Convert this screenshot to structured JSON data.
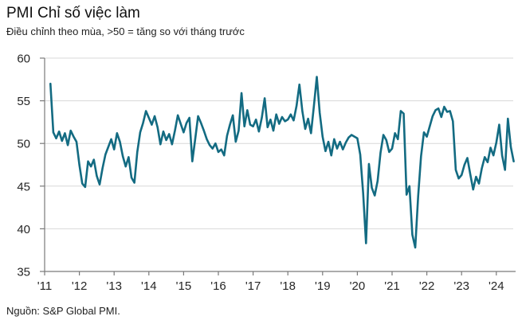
{
  "header": {
    "title": "PMI Chỉ số việc làm",
    "subtitle": "Điều chỉnh theo mùa, >50 = tăng so với tháng trước"
  },
  "footer": {
    "source": "Nguồn: S&P Global PMI."
  },
  "chart_data": {
    "type": "line",
    "title": "PMI Chỉ số việc làm",
    "subtitle": "Điều chỉnh theo mùa, >50 = tăng so với tháng trước",
    "source": "Nguồn: S&P Global PMI.",
    "series_name": "PMI việc làm",
    "frequency": "monthly",
    "start": "2011-03",
    "end": "2024-07",
    "values": [
      57.0,
      51.3,
      50.6,
      51.4,
      50.3,
      51.2,
      49.8,
      51.5,
      50.8,
      50.2,
      47.5,
      45.3,
      44.9,
      47.9,
      47.3,
      48.1,
      46.2,
      45.2,
      47.1,
      48.7,
      49.6,
      50.5,
      49.3,
      51.2,
      50.2,
      48.5,
      47.3,
      48.4,
      46.0,
      45.4,
      49.0,
      51.3,
      52.4,
      53.8,
      53.0,
      52.2,
      53.2,
      51.9,
      49.9,
      51.4,
      50.4,
      51.1,
      49.9,
      51.5,
      53.3,
      52.3,
      51.3,
      52.4,
      53.0,
      47.9,
      50.5,
      53.2,
      52.4,
      51.5,
      50.5,
      49.8,
      49.4,
      50.0,
      49.0,
      49.3,
      48.6,
      50.9,
      52.2,
      53.3,
      50.2,
      51.5,
      55.9,
      52.0,
      53.9,
      52.2,
      52.0,
      52.8,
      51.4,
      53.0,
      55.3,
      51.9,
      52.8,
      51.5,
      53.4,
      52.3,
      53.1,
      52.6,
      52.8,
      53.4,
      52.7,
      54.4,
      56.9,
      53.8,
      51.7,
      52.9,
      51.2,
      54.4,
      57.8,
      53.6,
      50.8,
      49.1,
      50.2,
      48.6,
      50.5,
      49.4,
      50.2,
      49.3,
      50.1,
      50.7,
      51.0,
      50.8,
      50.6,
      48.7,
      44.2,
      38.3,
      47.6,
      44.8,
      43.9,
      45.6,
      48.9,
      51.0,
      50.4,
      49.0,
      49.4,
      51.2,
      50.5,
      53.8,
      53.5,
      44.0,
      45.0,
      39.3,
      37.8,
      43.8,
      48.5,
      51.3,
      50.8,
      52.0,
      53.2,
      53.9,
      54.1,
      53.1,
      54.3,
      53.7,
      53.8,
      52.6,
      46.9,
      45.9,
      46.3,
      47.5,
      48.3,
      46.4,
      44.6,
      46.1,
      45.3,
      47.1,
      48.4,
      47.8,
      49.5,
      48.6,
      50.1,
      52.2,
      48.6,
      46.9,
      52.9,
      49.6,
      47.9
    ],
    "x_tick_labels": [
      "'11",
      "'12",
      "'13",
      "'14",
      "'15",
      "'16",
      "'17",
      "'18",
      "'19",
      "'20",
      "'21",
      "'22",
      "'23",
      "'24"
    ],
    "y_ticks": [
      35,
      40,
      45,
      50,
      55,
      60
    ],
    "ylim": [
      35,
      60
    ],
    "grid": true,
    "legend": false,
    "colors": {
      "line": "#136b82",
      "grid": "#d8d8d8",
      "axis": "#7a7a7a",
      "text": "#262626"
    }
  }
}
